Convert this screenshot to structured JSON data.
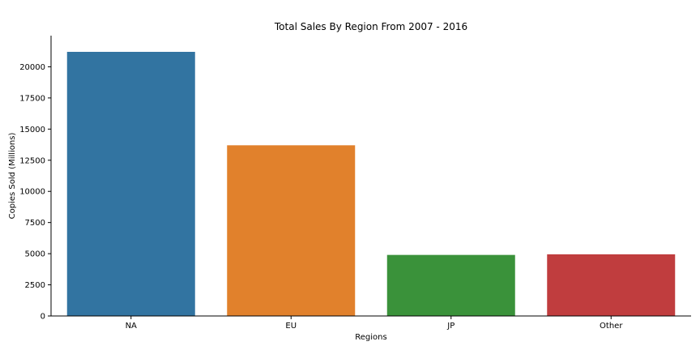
{
  "chart_data": {
    "type": "bar",
    "title": "Total Sales By Region From 2007 - 2016",
    "xlabel": "Regions",
    "ylabel": "Copies Sold (Millions)",
    "categories": [
      "NA",
      "EU",
      "JP",
      "Other"
    ],
    "values": [
      21200,
      13700,
      4900,
      4950
    ],
    "colors": [
      "#3274a1",
      "#e1812c",
      "#3a923a",
      "#c03d3e"
    ],
    "ylim": [
      0,
      22500
    ],
    "yticks": [
      0,
      2500,
      5000,
      7500,
      10000,
      12500,
      15000,
      17500,
      20000
    ],
    "ytick_labels": [
      "0",
      "2500",
      "5000",
      "7500",
      "10000",
      "12500",
      "15000",
      "17500",
      "20000"
    ],
    "grid": false,
    "legend": "none"
  }
}
